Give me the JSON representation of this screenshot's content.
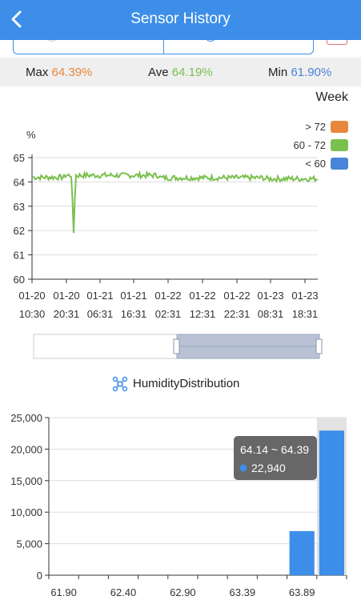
{
  "header": {
    "title": "Sensor History"
  },
  "stats": {
    "max_label": "Max",
    "max_value": "64.39%",
    "ave_label": "Ave",
    "ave_value": "64.19%",
    "min_label": "Min",
    "min_value": "61.90%"
  },
  "range_label": "Week",
  "line_chart": {
    "unit": "%",
    "legend": [
      {
        "label": "> 72",
        "color": "#e8873b"
      },
      {
        "label": "60 - 72",
        "color": "#7ac04f"
      },
      {
        "label": "< 60",
        "color": "#4a84d8"
      }
    ],
    "y_ticks": [
      "65",
      "64",
      "63",
      "62",
      "61",
      "60"
    ],
    "x_ticks": [
      {
        "date": "01-20",
        "time": "10:30"
      },
      {
        "date": "01-20",
        "time": "20:31"
      },
      {
        "date": "01-21",
        "time": "06:31"
      },
      {
        "date": "01-21",
        "time": "16:31"
      },
      {
        "date": "01-22",
        "time": "02:31"
      },
      {
        "date": "01-22",
        "time": "12:31"
      },
      {
        "date": "01-22",
        "time": "22:31"
      },
      {
        "date": "01-23",
        "time": "08:31"
      },
      {
        "date": "01-23",
        "time": "18:31"
      }
    ],
    "series_color": "#7ac04f",
    "baseline_value": 64.19,
    "dip_value": 61.9
  },
  "distribution": {
    "title": "HumidityDistribution",
    "y_ticks": [
      "25,000",
      "20,000",
      "15,000",
      "10,000",
      "5,000",
      "0"
    ],
    "x_ticks": [
      "61.90",
      "62.40",
      "62.90",
      "63.39",
      "63.89"
    ],
    "bars": [
      {
        "range": "61.90 ~ 62.15",
        "value": 0
      },
      {
        "range": "62.15 ~ 62.40",
        "value": 0
      },
      {
        "range": "62.40 ~ 62.65",
        "value": 0
      },
      {
        "range": "62.65 ~ 62.90",
        "value": 0
      },
      {
        "range": "62.90 ~ 63.14",
        "value": 0
      },
      {
        "range": "63.14 ~ 63.39",
        "value": 0
      },
      {
        "range": "63.39 ~ 63.64",
        "value": 0
      },
      {
        "range": "63.64 ~ 63.89",
        "value": 0
      },
      {
        "range": "63.89 ~ 64.14",
        "value": 7000
      },
      {
        "range": "64.14 ~ 64.39",
        "value": 22940
      }
    ],
    "tooltip": {
      "range": "64.14 ~ 64.39",
      "value": "22,940"
    },
    "bar_color": "#3d8ee8"
  }
}
